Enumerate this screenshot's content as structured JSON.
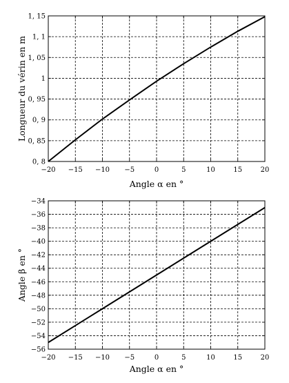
{
  "chart_data": [
    {
      "type": "line",
      "xlabel": "Angle α en °",
      "ylabel": "Longueur du vérin en m",
      "xlim": [
        -20,
        20
      ],
      "ylim": [
        0.8,
        1.15
      ],
      "xticks": [
        "−20",
        "−15",
        "−10",
        "−5",
        "0",
        "5",
        "10",
        "15",
        "20"
      ],
      "xtick_values": [
        -20,
        -15,
        -10,
        -5,
        0,
        5,
        10,
        15,
        20
      ],
      "yticks": [
        "0, 8",
        "0, 85",
        "0, 9",
        "0, 95",
        "1",
        "1, 05",
        "1, 1",
        "1, 15"
      ],
      "ytick_values": [
        0.8,
        0.85,
        0.9,
        0.95,
        1.0,
        1.05,
        1.1,
        1.15
      ],
      "grid": true,
      "series": [
        {
          "x": [
            -20,
            -15,
            -10,
            -5,
            0,
            5,
            10,
            15,
            20
          ],
          "y": [
            0.8,
            0.852,
            0.902,
            0.948,
            0.993,
            1.035,
            1.075,
            1.113,
            1.148
          ]
        }
      ]
    },
    {
      "type": "line",
      "xlabel": "Angle α en °",
      "ylabel": "Angle β en °",
      "xlim": [
        -20,
        20
      ],
      "ylim": [
        -56,
        -34
      ],
      "xticks": [
        "−20",
        "−15",
        "−10",
        "−5",
        "0",
        "5",
        "10",
        "15",
        "20"
      ],
      "xtick_values": [
        -20,
        -15,
        -10,
        -5,
        0,
        5,
        10,
        15,
        20
      ],
      "yticks": [
        "−56",
        "−54",
        "−52",
        "−50",
        "−48",
        "−46",
        "−44",
        "−42",
        "−40",
        "−38",
        "−36",
        "−34"
      ],
      "ytick_values": [
        -56,
        -54,
        -52,
        -50,
        -48,
        -46,
        -44,
        -42,
        -40,
        -38,
        -36,
        -34
      ],
      "grid": true,
      "series": [
        {
          "x": [
            -20,
            -10,
            0,
            10,
            20
          ],
          "y": [
            -55,
            -50,
            -45,
            -40,
            -35
          ]
        }
      ]
    }
  ]
}
